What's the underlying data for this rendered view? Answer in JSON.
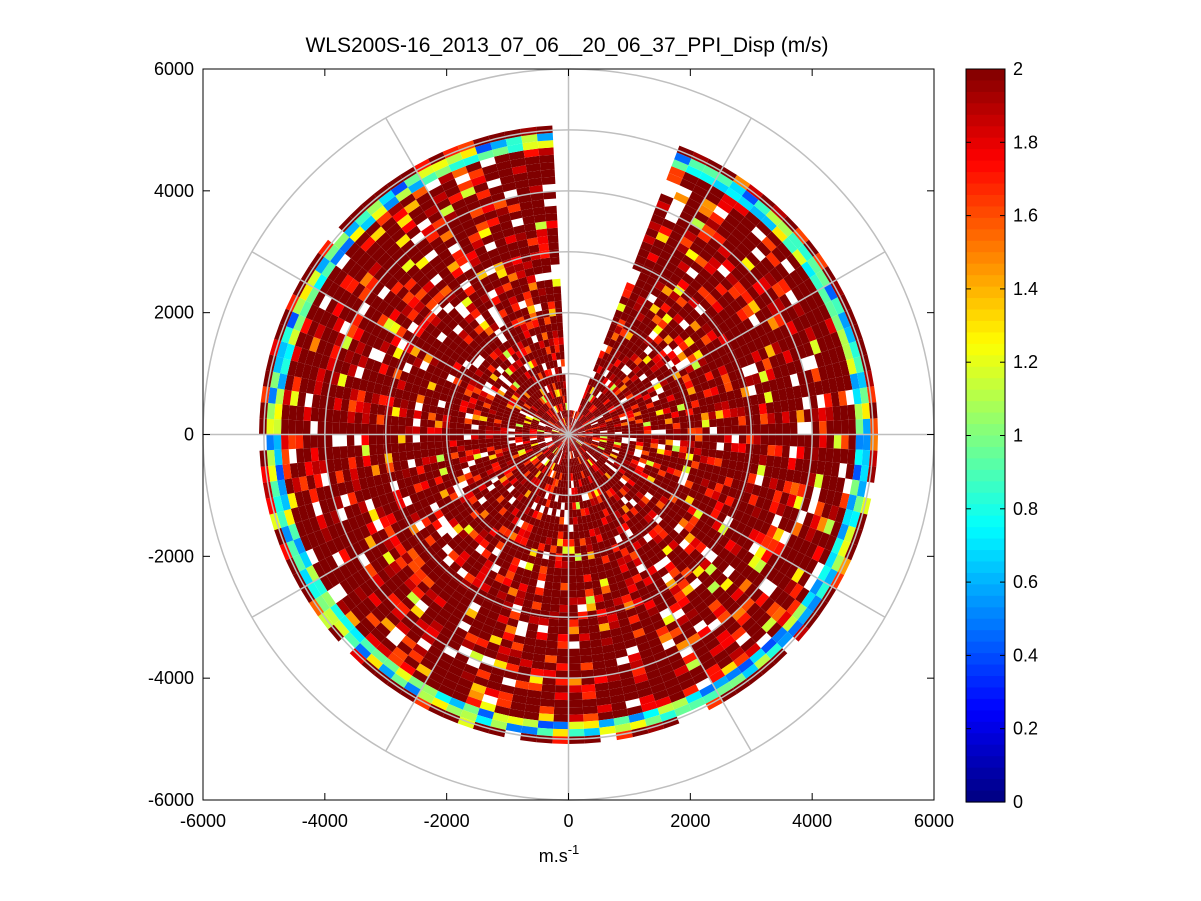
{
  "chart_data": {
    "type": "heatmap",
    "subtype": "polar-ppi",
    "title": "WLS200S-16_2013_07_06__20_06_37_PPI_Disp (m/s)",
    "xlabel": "m.s",
    "xlabel_superscript": "-1",
    "ylabel": "",
    "xlim": [
      -6000,
      6000
    ],
    "ylim": [
      -6000,
      6000
    ],
    "xticks": [
      "-6000",
      "-4000",
      "-2000",
      "0",
      "2000",
      "4000",
      "6000"
    ],
    "yticks": [
      "6000",
      "4000",
      "2000",
      "0",
      "-2000",
      "-4000",
      "-6000"
    ],
    "polar_grid_radii": [
      1000,
      2000,
      3000,
      4000,
      5000,
      6000
    ],
    "polar_grid_spokes_deg": [
      0,
      30,
      60,
      90,
      120,
      150,
      180,
      210,
      240,
      270,
      300,
      330
    ],
    "colorbar": {
      "range": [
        0,
        2
      ],
      "ticks": [
        "2",
        "1.8",
        "1.6",
        "1.4",
        "1.2",
        "1",
        "0.8",
        "0.6",
        "0.4",
        "0.2",
        "0"
      ],
      "colormap": "jet"
    },
    "data_description": {
      "range_max_m": 5000,
      "dominant_value_ms": 2,
      "missing_sector_deg": [
        355,
        20
      ],
      "low_value_ring_m": [
        4600,
        4900
      ]
    }
  }
}
